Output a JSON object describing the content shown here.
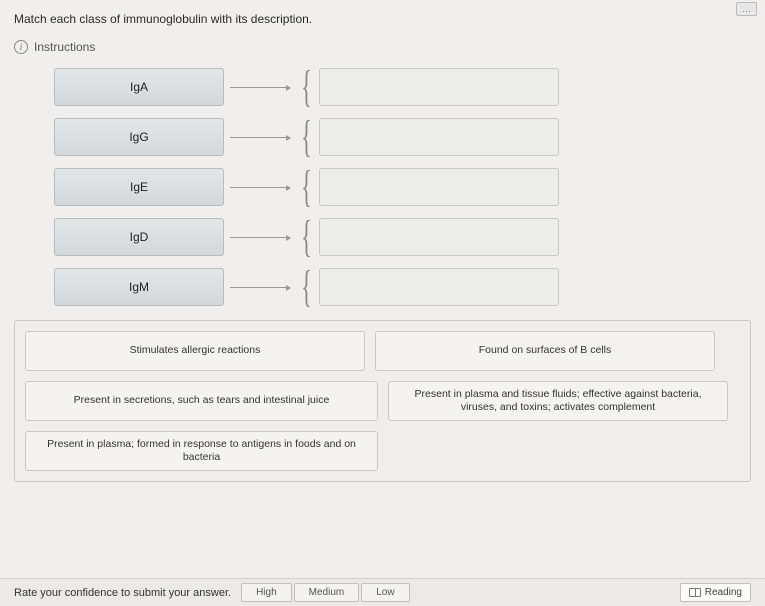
{
  "header": {
    "partial_button": "…"
  },
  "prompt": "Match each class of immunoglobulin with its description.",
  "instructions_label": "Instructions",
  "terms": [
    {
      "label": "IgA"
    },
    {
      "label": "IgG"
    },
    {
      "label": "IgE"
    },
    {
      "label": "IgD"
    },
    {
      "label": "IgM"
    }
  ],
  "options": [
    {
      "text": "Stimulates allergic reactions",
      "cls": "opt-a"
    },
    {
      "text": "Found on surfaces of B cells",
      "cls": "opt-b"
    },
    {
      "text": "Present in secretions, such as tears and intestinal juice",
      "cls": "opt-c"
    },
    {
      "text": "Present in plasma and tissue fluids; effective against bacteria, viruses, and toxins; activates complement",
      "cls": "opt-d"
    },
    {
      "text": "Present in plasma; formed in response to antigens in foods and on bacteria",
      "cls": "opt-e"
    }
  ],
  "footer": {
    "rate_label": "Rate your confidence to submit your answer.",
    "high": "High",
    "medium": "Medium",
    "low": "Low",
    "reading": "Reading"
  },
  "colors": {
    "page_bg": "#f0efed",
    "term_bg_top": "#e3e6e7",
    "term_bg_bottom": "#d4d8da",
    "border": "#c8c8c8",
    "text": "#2a2a2a"
  }
}
